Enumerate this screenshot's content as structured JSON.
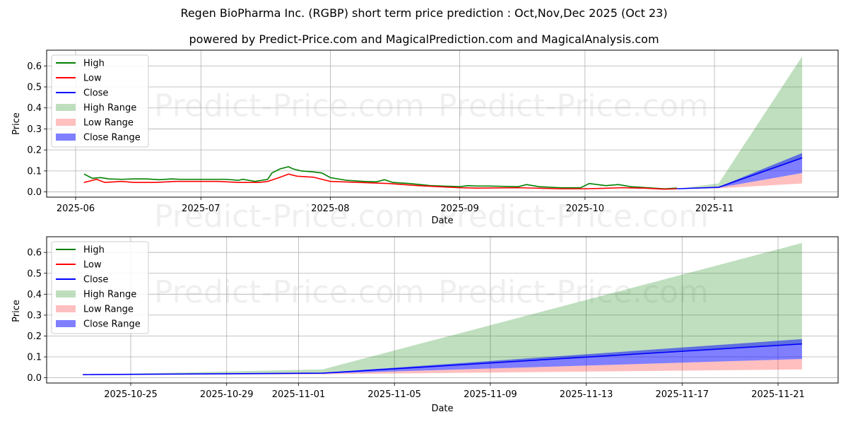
{
  "header": {
    "title": "Regen BioPharma Inc. (RGBP) short term price prediction : Oct,Nov,Dec 2025 (Oct 23)",
    "subtitle": "powered by Predict-Price.com and MagicalPrediction.com and MagicalAnalysis.com"
  },
  "watermark": "Predict-Price.com",
  "colors": {
    "high": "#008000",
    "low": "#ff0000",
    "close": "#0000ff",
    "high_range": "#008000",
    "low_range": "#ff0000",
    "close_range": "#0000ff"
  },
  "legend": [
    "High",
    "Low",
    "Close",
    "High Range",
    "Low Range",
    "Close Range"
  ],
  "chart_data": [
    {
      "type": "line",
      "title": "",
      "xlabel": "Date",
      "ylabel": "Price",
      "ylim": [
        -0.025,
        0.675
      ],
      "yticks": [
        "0.0",
        "0.1",
        "0.2",
        "0.3",
        "0.4",
        "0.5",
        "0.6"
      ],
      "xticks": [
        "2025-06",
        "2025-07",
        "2025-08",
        "2025-09",
        "2025-10",
        "2025-11"
      ],
      "grid": true,
      "legend_position": "upper left",
      "series": [
        {
          "name": "High",
          "x": [
            "2025-06-03",
            "2025-06-05",
            "2025-06-07",
            "2025-06-09",
            "2025-06-12",
            "2025-06-15",
            "2025-06-18",
            "2025-06-21",
            "2025-06-24",
            "2025-06-26",
            "2025-06-30",
            "2025-07-03",
            "2025-07-07",
            "2025-07-10",
            "2025-07-11",
            "2025-07-14",
            "2025-07-17",
            "2025-07-18",
            "2025-07-20",
            "2025-07-22",
            "2025-07-23",
            "2025-07-25",
            "2025-07-28",
            "2025-07-30",
            "2025-08-01",
            "2025-08-05",
            "2025-08-09",
            "2025-08-12",
            "2025-08-14",
            "2025-08-16",
            "2025-08-20",
            "2025-08-25",
            "2025-09-01",
            "2025-09-03",
            "2025-09-05",
            "2025-09-08",
            "2025-09-15",
            "2025-09-17",
            "2025-09-20",
            "2025-09-25",
            "2025-09-30",
            "2025-10-02",
            "2025-10-06",
            "2025-10-09",
            "2025-10-12",
            "2025-10-16",
            "2025-10-20",
            "2025-10-23"
          ],
          "values": [
            0.085,
            0.065,
            0.068,
            0.062,
            0.06,
            0.062,
            0.062,
            0.058,
            0.062,
            0.06,
            0.06,
            0.06,
            0.06,
            0.055,
            0.06,
            0.05,
            0.06,
            0.09,
            0.11,
            0.12,
            0.11,
            0.1,
            0.095,
            0.09,
            0.068,
            0.055,
            0.05,
            0.048,
            0.058,
            0.045,
            0.04,
            0.03,
            0.025,
            0.03,
            0.028,
            0.028,
            0.025,
            0.035,
            0.025,
            0.02,
            0.02,
            0.04,
            0.03,
            0.035,
            0.025,
            0.02,
            0.015,
            0.018
          ]
        },
        {
          "name": "Low",
          "x": [
            "2025-06-03",
            "2025-06-06",
            "2025-06-08",
            "2025-06-12",
            "2025-06-15",
            "2025-06-20",
            "2025-06-25",
            "2025-06-30",
            "2025-07-05",
            "2025-07-10",
            "2025-07-15",
            "2025-07-17",
            "2025-07-20",
            "2025-07-22",
            "2025-07-24",
            "2025-07-28",
            "2025-08-01",
            "2025-08-08",
            "2025-08-15",
            "2025-08-22",
            "2025-09-01",
            "2025-09-05",
            "2025-09-15",
            "2025-09-25",
            "2025-10-01",
            "2025-10-05",
            "2025-10-10",
            "2025-10-15",
            "2025-10-20",
            "2025-10-23"
          ],
          "values": [
            0.045,
            0.06,
            0.045,
            0.05,
            0.045,
            0.045,
            0.05,
            0.05,
            0.05,
            0.045,
            0.045,
            0.05,
            0.07,
            0.085,
            0.075,
            0.07,
            0.05,
            0.045,
            0.04,
            0.03,
            0.02,
            0.018,
            0.02,
            0.015,
            0.015,
            0.017,
            0.02,
            0.018,
            0.013,
            0.015
          ]
        },
        {
          "name": "Close",
          "x": [
            "2025-10-23",
            "2025-11-02",
            "2025-11-22"
          ],
          "values": [
            0.015,
            0.022,
            0.162
          ]
        },
        {
          "name": "High Range",
          "x": [
            "2025-10-23",
            "2025-11-02",
            "2025-11-22"
          ],
          "upper": [
            0.015,
            0.04,
            0.645
          ],
          "lower": [
            0.015,
            0.022,
            0.162
          ]
        },
        {
          "name": "Low Range",
          "x": [
            "2025-10-23",
            "2025-11-02",
            "2025-11-22"
          ],
          "upper": [
            0.015,
            0.02,
            0.09
          ],
          "lower": [
            0.015,
            0.017,
            0.04
          ]
        },
        {
          "name": "Close Range",
          "x": [
            "2025-10-23",
            "2025-11-02",
            "2025-11-22"
          ],
          "upper": [
            0.015,
            0.024,
            0.185
          ],
          "lower": [
            0.015,
            0.02,
            0.09
          ]
        }
      ]
    },
    {
      "type": "line",
      "title": "",
      "xlabel": "Date",
      "ylabel": "Price",
      "ylim": [
        -0.025,
        0.675
      ],
      "yticks": [
        "0.0",
        "0.1",
        "0.2",
        "0.3",
        "0.4",
        "0.5",
        "0.6"
      ],
      "xticks": [
        "2025-10-25",
        "2025-10-29",
        "2025-11-01",
        "2025-11-05",
        "2025-11-09",
        "2025-11-13",
        "2025-11-17",
        "2025-11-21"
      ],
      "grid": true,
      "legend_position": "upper left",
      "series": [
        {
          "name": "Close",
          "x": [
            "2025-10-23",
            "2025-11-02",
            "2025-11-22"
          ],
          "values": [
            0.015,
            0.022,
            0.162
          ]
        },
        {
          "name": "High Range",
          "x": [
            "2025-10-23",
            "2025-11-02",
            "2025-11-22"
          ],
          "upper": [
            0.015,
            0.04,
            0.645
          ],
          "lower": [
            0.015,
            0.022,
            0.162
          ]
        },
        {
          "name": "Low Range",
          "x": [
            "2025-10-23",
            "2025-11-02",
            "2025-11-22"
          ],
          "upper": [
            0.015,
            0.02,
            0.09
          ],
          "lower": [
            0.015,
            0.017,
            0.04
          ]
        },
        {
          "name": "Close Range",
          "x": [
            "2025-10-23",
            "2025-11-02",
            "2025-11-22"
          ],
          "upper": [
            0.015,
            0.024,
            0.185
          ],
          "lower": [
            0.015,
            0.02,
            0.09
          ]
        }
      ]
    }
  ]
}
